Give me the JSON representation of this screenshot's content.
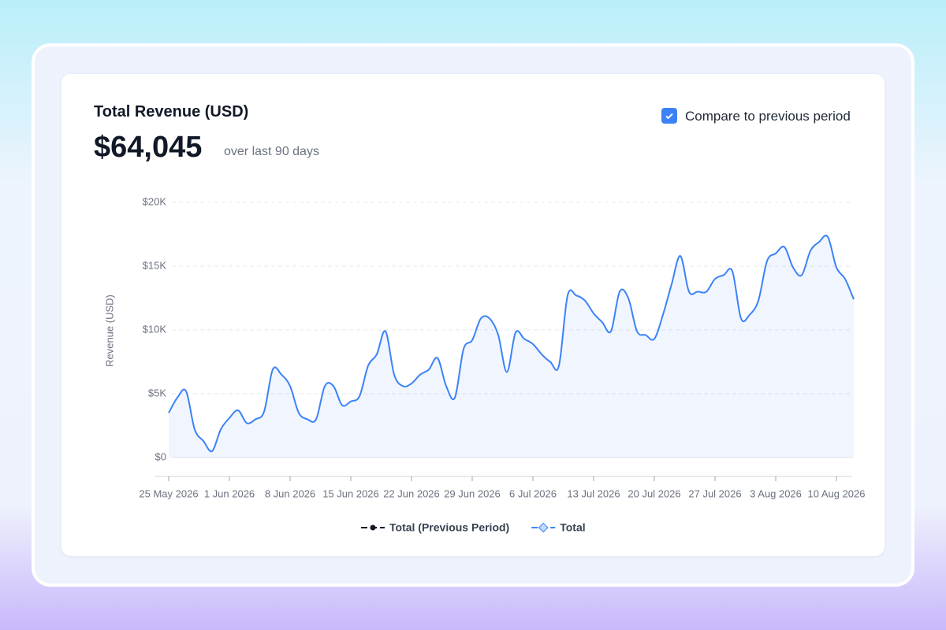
{
  "card": {
    "title": "Total Revenue (USD)",
    "amount": "$64,045",
    "period": "over last 90 days",
    "compare_label": "Compare to previous period"
  },
  "chart_data": {
    "type": "line",
    "y_label": "Revenue (USD)",
    "x": [
      "2026-05-25",
      "2026-05-26",
      "2026-05-27",
      "2026-05-28",
      "2026-05-29",
      "2026-05-30",
      "2026-05-31",
      "2026-06-01",
      "2026-06-02",
      "2026-06-03",
      "2026-06-04",
      "2026-06-05",
      "2026-06-06",
      "2026-06-07",
      "2026-06-08",
      "2026-06-09",
      "2026-06-10",
      "2026-06-11",
      "2026-06-12",
      "2026-06-13",
      "2026-06-14",
      "2026-06-15",
      "2026-06-16",
      "2026-06-17",
      "2026-06-18",
      "2026-06-19",
      "2026-06-20",
      "2026-06-21",
      "2026-06-22",
      "2026-06-23",
      "2026-06-24",
      "2026-06-25",
      "2026-06-26",
      "2026-06-27",
      "2026-06-28",
      "2026-06-29",
      "2026-06-30",
      "2026-07-01",
      "2026-07-02",
      "2026-07-03",
      "2026-07-04",
      "2026-07-05",
      "2026-07-06",
      "2026-07-07",
      "2026-07-08",
      "2026-07-09",
      "2026-07-10",
      "2026-07-11",
      "2026-07-12",
      "2026-07-13",
      "2026-07-14",
      "2026-07-15",
      "2026-07-16",
      "2026-07-17",
      "2026-07-18",
      "2026-07-19",
      "2026-07-20",
      "2026-07-21",
      "2026-07-22",
      "2026-07-23",
      "2026-07-24",
      "2026-07-25",
      "2026-07-26",
      "2026-07-27",
      "2026-07-28",
      "2026-07-29",
      "2026-07-30",
      "2026-07-31",
      "2026-08-01",
      "2026-08-02",
      "2026-08-03",
      "2026-08-04",
      "2026-08-05",
      "2026-08-06",
      "2026-08-07",
      "2026-08-08",
      "2026-08-09",
      "2026-08-10",
      "2026-08-11",
      "2026-08-12"
    ],
    "series": [
      {
        "name": "Total",
        "color": "#3b82f6",
        "values": [
          3500,
          4700,
          5200,
          2200,
          1300,
          500,
          2200,
          3100,
          3700,
          2700,
          3000,
          3600,
          6900,
          6500,
          5600,
          3500,
          3000,
          3000,
          5600,
          5600,
          4100,
          4400,
          4800,
          7200,
          8100,
          9900,
          6500,
          5600,
          5800,
          6500,
          6900,
          7800,
          5600,
          4700,
          8500,
          9200,
          10900,
          10900,
          9600,
          6700,
          9800,
          9300,
          8900,
          8100,
          7500,
          7200,
          12700,
          12700,
          12300,
          11300,
          10600,
          9900,
          13000,
          12500,
          9900,
          9600,
          9300,
          11200,
          13600,
          15800,
          13000,
          13000,
          13000,
          14000,
          14300,
          14600,
          10900,
          11200,
          12300,
          15400,
          16000,
          16500,
          14900,
          14300,
          16200,
          16900,
          17300,
          14900,
          14000,
          12400
        ]
      }
    ],
    "legend": [
      {
        "name": "Total (Previous Period)",
        "color": "#111827"
      },
      {
        "name": "Total",
        "color": "#3b82f6"
      }
    ],
    "xlim": [
      "2026-05-24",
      "2026-08-12"
    ],
    "xticks": [
      {
        "value": "2026-05-25",
        "label": "25 May 2026"
      },
      {
        "value": "2026-06-01",
        "label": "1 Jun 2026"
      },
      {
        "value": "2026-06-08",
        "label": "8 Jun 2026"
      },
      {
        "value": "2026-06-15",
        "label": "15 Jun 2026"
      },
      {
        "value": "2026-06-22",
        "label": "22 Jun 2026"
      },
      {
        "value": "2026-06-29",
        "label": "29 Jun 2026"
      },
      {
        "value": "2026-07-06",
        "label": "6 Jul 2026"
      },
      {
        "value": "2026-07-13",
        "label": "13 Jul 2026"
      },
      {
        "value": "2026-07-20",
        "label": "20 Jul 2026"
      },
      {
        "value": "2026-07-27",
        "label": "27 Jul 2026"
      },
      {
        "value": "2026-08-03",
        "label": "3 Aug 2026"
      },
      {
        "value": "2026-08-10",
        "label": "10 Aug 2026"
      }
    ],
    "ylim": [
      0,
      20000
    ],
    "yticks": [
      {
        "value": 0,
        "label": "$0"
      },
      {
        "value": 5000,
        "label": "$5K"
      },
      {
        "value": 10000,
        "label": "$10K"
      },
      {
        "value": 15000,
        "label": "$15K"
      },
      {
        "value": 20000,
        "label": "$20K"
      }
    ],
    "grid": true
  }
}
